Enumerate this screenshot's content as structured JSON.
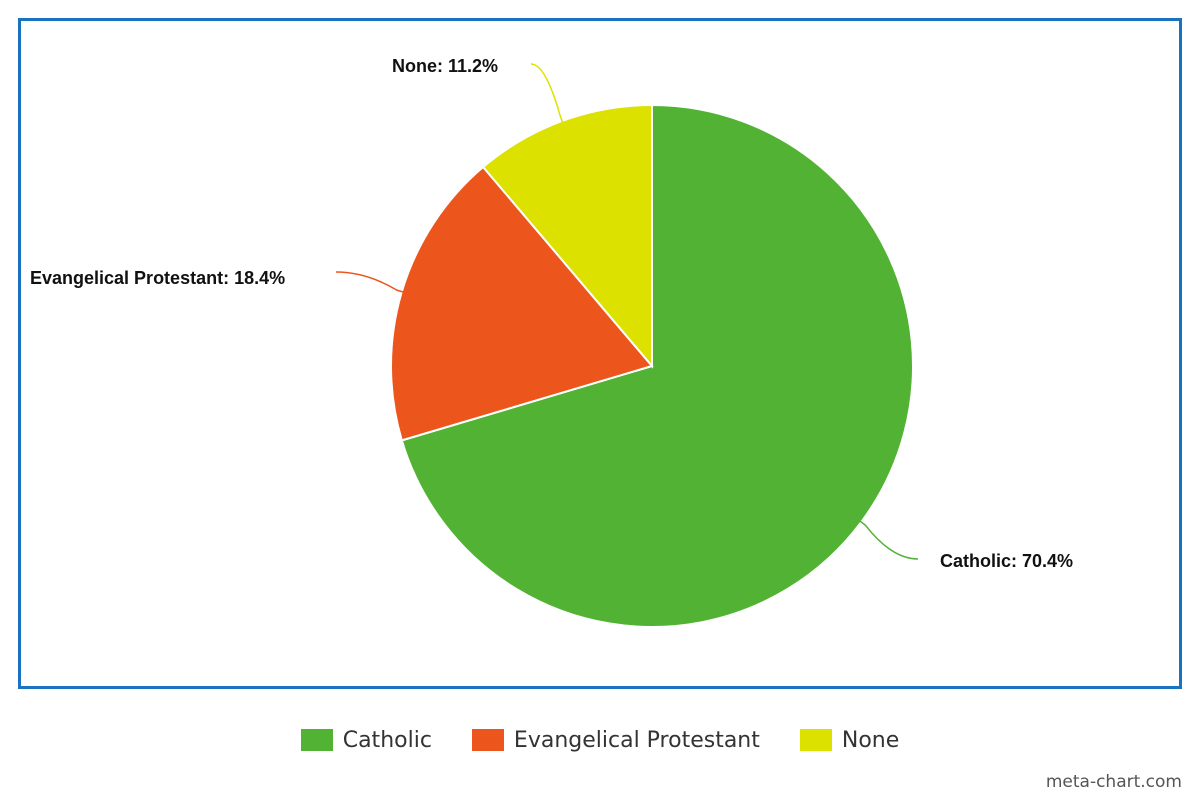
{
  "chart_data": {
    "type": "pie",
    "title": "",
    "slices": [
      {
        "label": "Catholic",
        "value": 70.4,
        "color": "#52b234",
        "data_label": "Catholic: 70.4%"
      },
      {
        "label": "Evangelical Protestant",
        "value": 18.4,
        "color": "#ec561d",
        "data_label": "Evangelical Protestant: 18.4%"
      },
      {
        "label": "None",
        "value": 11.2,
        "color": "#dde100",
        "data_label": "None: 11.2%"
      }
    ],
    "legend_position": "bottom"
  },
  "frame_color": "#1a73c0",
  "watermark": "meta-chart.com"
}
